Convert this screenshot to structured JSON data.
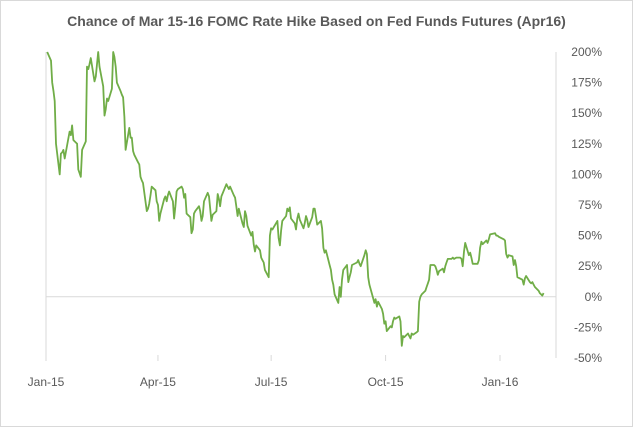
{
  "chart_data": {
    "type": "line",
    "title": "Chance of Mar 15-16 FOMC Rate Hike Based on Fed Funds Futures (Apr16)",
    "xlabel": "",
    "ylabel": "",
    "x_ticks": [
      "Jan-15",
      "Apr-15",
      "Jul-15",
      "Oct-15",
      "Jan-16"
    ],
    "y_ticks": [
      "200%",
      "175%",
      "150%",
      "125%",
      "100%",
      "75%",
      "50%",
      "25%",
      "0%",
      "-25%",
      "-50%"
    ],
    "ylim": [
      -50,
      200
    ],
    "grid": false,
    "series_color": "#70ad47",
    "series": [
      {
        "values": [
          [
            "2015-01-02",
            200
          ],
          [
            "2015-01-05",
            193
          ],
          [
            "2015-01-06",
            175
          ],
          [
            "2015-01-07",
            168
          ],
          [
            "2015-01-08",
            160
          ],
          [
            "2015-01-09",
            125
          ],
          [
            "2015-01-12",
            100
          ],
          [
            "2015-01-13",
            117
          ],
          [
            "2015-01-14",
            118
          ],
          [
            "2015-01-15",
            120
          ],
          [
            "2015-01-16",
            113
          ],
          [
            "2015-01-20",
            135
          ],
          [
            "2015-01-21",
            132
          ],
          [
            "2015-01-22",
            140
          ],
          [
            "2015-01-23",
            128
          ],
          [
            "2015-01-26",
            125
          ],
          [
            "2015-01-27",
            104
          ],
          [
            "2015-01-28",
            101
          ],
          [
            "2015-01-29",
            98
          ],
          [
            "2015-01-30",
            120
          ],
          [
            "2015-02-02",
            127
          ],
          [
            "2015-02-03",
            188
          ],
          [
            "2015-02-04",
            186
          ],
          [
            "2015-02-05",
            190
          ],
          [
            "2015-02-06",
            195
          ],
          [
            "2015-02-09",
            176
          ],
          [
            "2015-02-10",
            180
          ],
          [
            "2015-02-11",
            190
          ],
          [
            "2015-02-12",
            200
          ],
          [
            "2015-02-13",
            188
          ],
          [
            "2015-02-16",
            172
          ],
          [
            "2015-02-17",
            148
          ],
          [
            "2015-02-18",
            153
          ],
          [
            "2015-02-19",
            162
          ],
          [
            "2015-02-20",
            160
          ],
          [
            "2015-02-23",
            170
          ],
          [
            "2015-02-24",
            200
          ],
          [
            "2015-02-25",
            196
          ],
          [
            "2015-02-26",
            188
          ],
          [
            "2015-02-27",
            175
          ],
          [
            "2015-03-02",
            168
          ],
          [
            "2015-03-03",
            165
          ],
          [
            "2015-03-04",
            163
          ],
          [
            "2015-03-05",
            147
          ],
          [
            "2015-03-06",
            120
          ],
          [
            "2015-03-09",
            138
          ],
          [
            "2015-03-10",
            130
          ],
          [
            "2015-03-11",
            130
          ],
          [
            "2015-03-12",
            119
          ],
          [
            "2015-03-13",
            116
          ],
          [
            "2015-03-16",
            110
          ],
          [
            "2015-03-17",
            108
          ],
          [
            "2015-03-18",
            98
          ],
          [
            "2015-03-19",
            95
          ],
          [
            "2015-03-20",
            93
          ],
          [
            "2015-03-23",
            70
          ],
          [
            "2015-03-24",
            72
          ],
          [
            "2015-03-25",
            76
          ],
          [
            "2015-03-26",
            83
          ],
          [
            "2015-03-27",
            90
          ],
          [
            "2015-03-30",
            87
          ],
          [
            "2015-03-31",
            78
          ],
          [
            "2015-04-01",
            75
          ],
          [
            "2015-04-02",
            62
          ],
          [
            "2015-04-03",
            68
          ],
          [
            "2015-04-06",
            80
          ],
          [
            "2015-04-07",
            82
          ],
          [
            "2015-04-08",
            78
          ],
          [
            "2015-04-09",
            83
          ],
          [
            "2015-04-10",
            86
          ],
          [
            "2015-04-13",
            78
          ],
          [
            "2015-04-14",
            64
          ],
          [
            "2015-04-15",
            74
          ],
          [
            "2015-04-16",
            86
          ],
          [
            "2015-04-17",
            88
          ],
          [
            "2015-04-20",
            90
          ],
          [
            "2015-04-21",
            88
          ],
          [
            "2015-04-22",
            81
          ],
          [
            "2015-04-23",
            84
          ],
          [
            "2015-04-24",
            68
          ],
          [
            "2015-04-27",
            65
          ],
          [
            "2015-04-28",
            52
          ],
          [
            "2015-04-29",
            55
          ],
          [
            "2015-04-30",
            68
          ],
          [
            "2015-05-01",
            70
          ],
          [
            "2015-05-04",
            74
          ],
          [
            "2015-05-05",
            70
          ],
          [
            "2015-05-06",
            62
          ],
          [
            "2015-05-07",
            66
          ],
          [
            "2015-05-08",
            78
          ],
          [
            "2015-05-11",
            85
          ],
          [
            "2015-05-12",
            82
          ],
          [
            "2015-05-13",
            72
          ],
          [
            "2015-05-14",
            62
          ],
          [
            "2015-05-15",
            67
          ],
          [
            "2015-05-18",
            70
          ],
          [
            "2015-05-19",
            84
          ],
          [
            "2015-05-20",
            80
          ],
          [
            "2015-05-21",
            74
          ],
          [
            "2015-05-22",
            82
          ],
          [
            "2015-05-26",
            92
          ],
          [
            "2015-05-27",
            90
          ],
          [
            "2015-05-28",
            88
          ],
          [
            "2015-05-29",
            90
          ],
          [
            "2015-06-01",
            83
          ],
          [
            "2015-06-02",
            81
          ],
          [
            "2015-06-03",
            74
          ],
          [
            "2015-06-04",
            66
          ],
          [
            "2015-06-05",
            72
          ],
          [
            "2015-06-08",
            60
          ],
          [
            "2015-06-09",
            57
          ],
          [
            "2015-06-10",
            70
          ],
          [
            "2015-06-11",
            66
          ],
          [
            "2015-06-12",
            58
          ],
          [
            "2015-06-15",
            50
          ],
          [
            "2015-06-16",
            53
          ],
          [
            "2015-06-17",
            43
          ],
          [
            "2015-06-18",
            37
          ],
          [
            "2015-06-19",
            42
          ],
          [
            "2015-06-22",
            38
          ],
          [
            "2015-06-23",
            32
          ],
          [
            "2015-06-24",
            30
          ],
          [
            "2015-06-25",
            28
          ],
          [
            "2015-06-26",
            22
          ],
          [
            "2015-06-29",
            16
          ],
          [
            "2015-06-30",
            50
          ],
          [
            "2015-07-01",
            56
          ],
          [
            "2015-07-02",
            55
          ],
          [
            "2015-07-06",
            62
          ],
          [
            "2015-07-07",
            48
          ],
          [
            "2015-07-08",
            42
          ],
          [
            "2015-07-09",
            54
          ],
          [
            "2015-07-10",
            62
          ],
          [
            "2015-07-13",
            66
          ],
          [
            "2015-07-14",
            72
          ],
          [
            "2015-07-15",
            70
          ],
          [
            "2015-07-16",
            73
          ],
          [
            "2015-07-17",
            64
          ],
          [
            "2015-07-20",
            60
          ],
          [
            "2015-07-21",
            55
          ],
          [
            "2015-07-22",
            64
          ],
          [
            "2015-07-23",
            68
          ],
          [
            "2015-07-24",
            63
          ],
          [
            "2015-07-27",
            56
          ],
          [
            "2015-07-28",
            60
          ],
          [
            "2015-07-29",
            66
          ],
          [
            "2015-07-30",
            63
          ],
          [
            "2015-07-31",
            57
          ],
          [
            "2015-08-03",
            65
          ],
          [
            "2015-08-04",
            72
          ],
          [
            "2015-08-05",
            72
          ],
          [
            "2015-08-06",
            66
          ],
          [
            "2015-08-07",
            59
          ],
          [
            "2015-08-10",
            62
          ],
          [
            "2015-08-11",
            56
          ],
          [
            "2015-08-12",
            40
          ],
          [
            "2015-08-13",
            36
          ],
          [
            "2015-08-14",
            38
          ],
          [
            "2015-08-17",
            26
          ],
          [
            "2015-08-18",
            22
          ],
          [
            "2015-08-19",
            14
          ],
          [
            "2015-08-20",
            10
          ],
          [
            "2015-08-21",
            2
          ],
          [
            "2015-08-24",
            -5
          ],
          [
            "2015-08-25",
            8
          ],
          [
            "2015-08-26",
            0
          ],
          [
            "2015-08-27",
            14
          ],
          [
            "2015-08-28",
            22
          ],
          [
            "2015-08-31",
            26
          ],
          [
            "2015-09-01",
            12
          ],
          [
            "2015-09-02",
            16
          ],
          [
            "2015-09-03",
            20
          ],
          [
            "2015-09-04",
            26
          ],
          [
            "2015-09-08",
            28
          ],
          [
            "2015-09-09",
            30
          ],
          [
            "2015-09-10",
            27
          ],
          [
            "2015-09-11",
            25
          ],
          [
            "2015-09-14",
            34
          ],
          [
            "2015-09-15",
            38
          ],
          [
            "2015-09-16",
            35
          ],
          [
            "2015-09-17",
            16
          ],
          [
            "2015-09-18",
            10
          ],
          [
            "2015-09-21",
            -1
          ],
          [
            "2015-09-22",
            -5
          ],
          [
            "2015-09-23",
            -2
          ],
          [
            "2015-09-24",
            -8
          ],
          [
            "2015-09-25",
            -4
          ],
          [
            "2015-09-28",
            -10
          ],
          [
            "2015-09-29",
            -14
          ],
          [
            "2015-09-30",
            -22
          ],
          [
            "2015-10-01",
            -20
          ],
          [
            "2015-10-02",
            -28
          ],
          [
            "2015-10-05",
            -24
          ],
          [
            "2015-10-06",
            -25
          ],
          [
            "2015-10-07",
            -20
          ],
          [
            "2015-10-08",
            -17
          ],
          [
            "2015-10-09",
            -18
          ],
          [
            "2015-10-12",
            -16
          ],
          [
            "2015-10-13",
            -20
          ],
          [
            "2015-10-14",
            -40
          ],
          [
            "2015-10-15",
            -32
          ],
          [
            "2015-10-16",
            -33
          ],
          [
            "2015-10-19",
            -30
          ],
          [
            "2015-10-20",
            -32
          ],
          [
            "2015-10-21",
            -34
          ],
          [
            "2015-10-22",
            -30
          ],
          [
            "2015-10-23",
            -31
          ],
          [
            "2015-10-26",
            -29
          ],
          [
            "2015-10-27",
            -28
          ],
          [
            "2015-10-28",
            -4
          ],
          [
            "2015-10-29",
            0
          ],
          [
            "2015-10-30",
            2
          ],
          [
            "2015-11-02",
            5
          ],
          [
            "2015-11-03",
            8
          ],
          [
            "2015-11-04",
            11
          ],
          [
            "2015-11-05",
            14
          ],
          [
            "2015-11-06",
            26
          ],
          [
            "2015-11-09",
            26
          ],
          [
            "2015-11-10",
            25
          ],
          [
            "2015-11-11",
            22
          ],
          [
            "2015-11-12",
            18
          ],
          [
            "2015-11-13",
            21
          ],
          [
            "2015-11-16",
            23
          ],
          [
            "2015-11-17",
            20
          ],
          [
            "2015-11-18",
            25
          ],
          [
            "2015-11-19",
            28
          ],
          [
            "2015-11-20",
            31
          ],
          [
            "2015-11-23",
            31
          ],
          [
            "2015-11-24",
            32
          ],
          [
            "2015-11-25",
            31
          ],
          [
            "2015-11-27",
            32
          ],
          [
            "2015-11-30",
            32
          ],
          [
            "2015-12-01",
            31
          ],
          [
            "2015-12-02",
            25
          ],
          [
            "2015-12-03",
            37
          ],
          [
            "2015-12-04",
            44
          ],
          [
            "2015-12-07",
            34
          ],
          [
            "2015-12-08",
            36
          ],
          [
            "2015-12-09",
            32
          ],
          [
            "2015-12-10",
            27
          ],
          [
            "2015-12-11",
            27
          ],
          [
            "2015-12-14",
            27
          ],
          [
            "2015-12-15",
            30
          ],
          [
            "2015-12-16",
            40
          ],
          [
            "2015-12-17",
            45
          ],
          [
            "2015-12-18",
            43
          ],
          [
            "2015-12-21",
            46
          ],
          [
            "2015-12-22",
            44
          ],
          [
            "2015-12-23",
            47
          ],
          [
            "2015-12-24",
            51
          ],
          [
            "2015-12-28",
            52
          ],
          [
            "2015-12-29",
            50
          ],
          [
            "2015-12-30",
            50
          ],
          [
            "2015-12-31",
            49
          ],
          [
            "2016-01-04",
            47
          ],
          [
            "2016-01-05",
            46
          ],
          [
            "2016-01-06",
            35
          ],
          [
            "2016-01-07",
            32
          ],
          [
            "2016-01-08",
            34
          ],
          [
            "2016-01-11",
            33
          ],
          [
            "2016-01-12",
            26
          ],
          [
            "2016-01-13",
            30
          ],
          [
            "2016-01-14",
            25
          ],
          [
            "2016-01-15",
            16
          ],
          [
            "2016-01-19",
            14
          ],
          [
            "2016-01-20",
            10
          ],
          [
            "2016-01-21",
            15
          ],
          [
            "2016-01-22",
            17
          ],
          [
            "2016-01-25",
            12
          ],
          [
            "2016-01-26",
            11
          ],
          [
            "2016-01-27",
            12
          ],
          [
            "2016-01-28",
            10
          ],
          [
            "2016-01-29",
            8
          ],
          [
            "2016-02-01",
            5
          ],
          [
            "2016-02-02",
            3
          ],
          [
            "2016-02-03",
            2
          ],
          [
            "2016-02-04",
            1
          ],
          [
            "2016-02-05",
            3
          ]
        ]
      }
    ]
  }
}
